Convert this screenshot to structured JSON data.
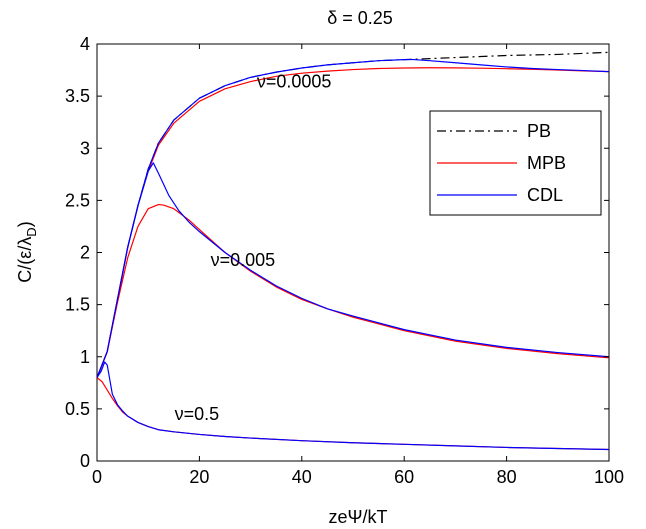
{
  "chart_data": {
    "type": "line",
    "title": "δ = 0.25",
    "xlabel": "zeΨ/kT",
    "ylabel": "C/(ε/λ",
    "ylabel_sub": "D",
    "ylabel_end": ")",
    "xlim": [
      0,
      100
    ],
    "ylim": [
      0,
      4
    ],
    "xticks": [
      0,
      20,
      40,
      60,
      80,
      100
    ],
    "xtick_labels": [
      "0",
      "20",
      "40",
      "60",
      "80",
      "100"
    ],
    "yticks": [
      0,
      0.5,
      1,
      1.5,
      2,
      2.5,
      3,
      3.5,
      4
    ],
    "ytick_labels": [
      "0",
      "0.5",
      "1",
      "1.5",
      "2",
      "2.5",
      "3",
      "3.5",
      "4"
    ],
    "grid": false,
    "legend_position": "top-right",
    "legend": [
      {
        "label": "PB",
        "color": "#000000",
        "dash": "dash-dot"
      },
      {
        "label": "MPB",
        "color": "#ff0000",
        "dash": "solid"
      },
      {
        "label": "CDL",
        "color": "#0000ff",
        "dash": "solid"
      }
    ],
    "annotations": [
      {
        "text": "ν=0.0005",
        "x": 38.5,
        "y": 3.64
      },
      {
        "text": "ν=0.005",
        "x": 28.5,
        "y": 1.93
      },
      {
        "text": "ν=0.5",
        "x": 19.5,
        "y": 0.45
      }
    ],
    "series": [
      {
        "name": "PB",
        "color": "#000000",
        "dash": "dash-dot",
        "x": [
          0,
          2,
          4,
          6,
          8,
          10,
          12,
          15,
          20,
          25,
          30,
          35,
          40,
          45,
          50,
          55,
          60,
          65,
          70,
          75,
          80,
          85,
          90,
          95,
          100
        ],
        "y": [
          0.8,
          1.05,
          1.55,
          2.05,
          2.45,
          2.8,
          3.05,
          3.27,
          3.48,
          3.6,
          3.68,
          3.73,
          3.77,
          3.8,
          3.82,
          3.84,
          3.85,
          3.86,
          3.87,
          3.88,
          3.89,
          3.895,
          3.9,
          3.91,
          3.92
        ]
      },
      {
        "name": "MPB ν=0.0005",
        "color": "#ff0000",
        "dash": "solid",
        "x": [
          0,
          2,
          4,
          6,
          8,
          10,
          12,
          15,
          20,
          25,
          30,
          35,
          40,
          45,
          50,
          55,
          60,
          65,
          70,
          75,
          80,
          85,
          90,
          95,
          100
        ],
        "y": [
          0.8,
          1.05,
          1.55,
          2.05,
          2.45,
          2.78,
          3.03,
          3.24,
          3.45,
          3.57,
          3.64,
          3.69,
          3.72,
          3.74,
          3.755,
          3.765,
          3.77,
          3.772,
          3.771,
          3.768,
          3.763,
          3.757,
          3.75,
          3.742,
          3.735
        ]
      },
      {
        "name": "CDL ν=0.0005",
        "color": "#0000ff",
        "dash": "solid",
        "x": [
          0,
          2,
          4,
          6,
          8,
          10,
          12,
          15,
          20,
          25,
          30,
          35,
          40,
          45,
          50,
          55,
          60,
          61.5,
          65,
          70,
          75,
          80,
          85,
          90,
          95,
          100
        ],
        "y": [
          0.8,
          1.05,
          1.55,
          2.05,
          2.45,
          2.8,
          3.05,
          3.27,
          3.48,
          3.6,
          3.68,
          3.73,
          3.77,
          3.8,
          3.82,
          3.84,
          3.85,
          3.852,
          3.84,
          3.82,
          3.8,
          3.78,
          3.765,
          3.755,
          3.745,
          3.735
        ]
      },
      {
        "name": "MPB ν=0.005",
        "color": "#ff0000",
        "dash": "solid",
        "x": [
          0,
          2,
          4,
          6,
          8,
          10,
          12,
          13,
          15,
          18,
          20,
          25,
          30,
          35,
          40,
          45,
          50,
          60,
          70,
          80,
          90,
          100
        ],
        "y": [
          0.8,
          1.05,
          1.52,
          1.95,
          2.25,
          2.42,
          2.46,
          2.455,
          2.42,
          2.31,
          2.22,
          2.0,
          1.82,
          1.67,
          1.55,
          1.46,
          1.38,
          1.25,
          1.15,
          1.08,
          1.03,
          0.99
        ]
      },
      {
        "name": "CDL ν=0.005",
        "color": "#0000ff",
        "dash": "solid",
        "x": [
          0,
          2,
          4,
          6,
          8,
          10,
          11,
          12,
          14,
          16,
          18,
          20,
          25,
          30,
          35,
          40,
          45,
          50,
          60,
          70,
          80,
          90,
          100
        ],
        "y": [
          0.8,
          1.05,
          1.55,
          2.05,
          2.45,
          2.78,
          2.86,
          2.76,
          2.55,
          2.4,
          2.29,
          2.2,
          2.0,
          1.83,
          1.68,
          1.56,
          1.46,
          1.39,
          1.26,
          1.16,
          1.09,
          1.04,
          1.0
        ]
      },
      {
        "name": "MPB ν=0.5",
        "color": "#ff0000",
        "dash": "solid",
        "x": [
          0,
          1,
          2,
          3,
          4,
          5,
          6,
          8,
          10,
          12,
          15,
          20,
          25,
          30,
          40,
          50,
          60,
          70,
          80,
          90,
          100
        ],
        "y": [
          0.8,
          0.76,
          0.68,
          0.6,
          0.53,
          0.47,
          0.43,
          0.37,
          0.33,
          0.3,
          0.28,
          0.255,
          0.235,
          0.22,
          0.195,
          0.175,
          0.16,
          0.145,
          0.13,
          0.12,
          0.11
        ]
      },
      {
        "name": "CDL ν=0.5",
        "color": "#0000ff",
        "dash": "solid",
        "x": [
          0,
          0.8,
          1.5,
          2.0,
          2.5,
          3,
          4,
          5,
          6,
          8,
          10,
          12,
          15,
          20,
          25,
          30,
          40,
          50,
          60,
          70,
          80,
          90,
          100
        ],
        "y": [
          0.8,
          0.86,
          0.95,
          0.92,
          0.78,
          0.64,
          0.54,
          0.48,
          0.43,
          0.37,
          0.33,
          0.3,
          0.28,
          0.255,
          0.235,
          0.22,
          0.195,
          0.175,
          0.16,
          0.145,
          0.13,
          0.12,
          0.11
        ]
      }
    ]
  }
}
